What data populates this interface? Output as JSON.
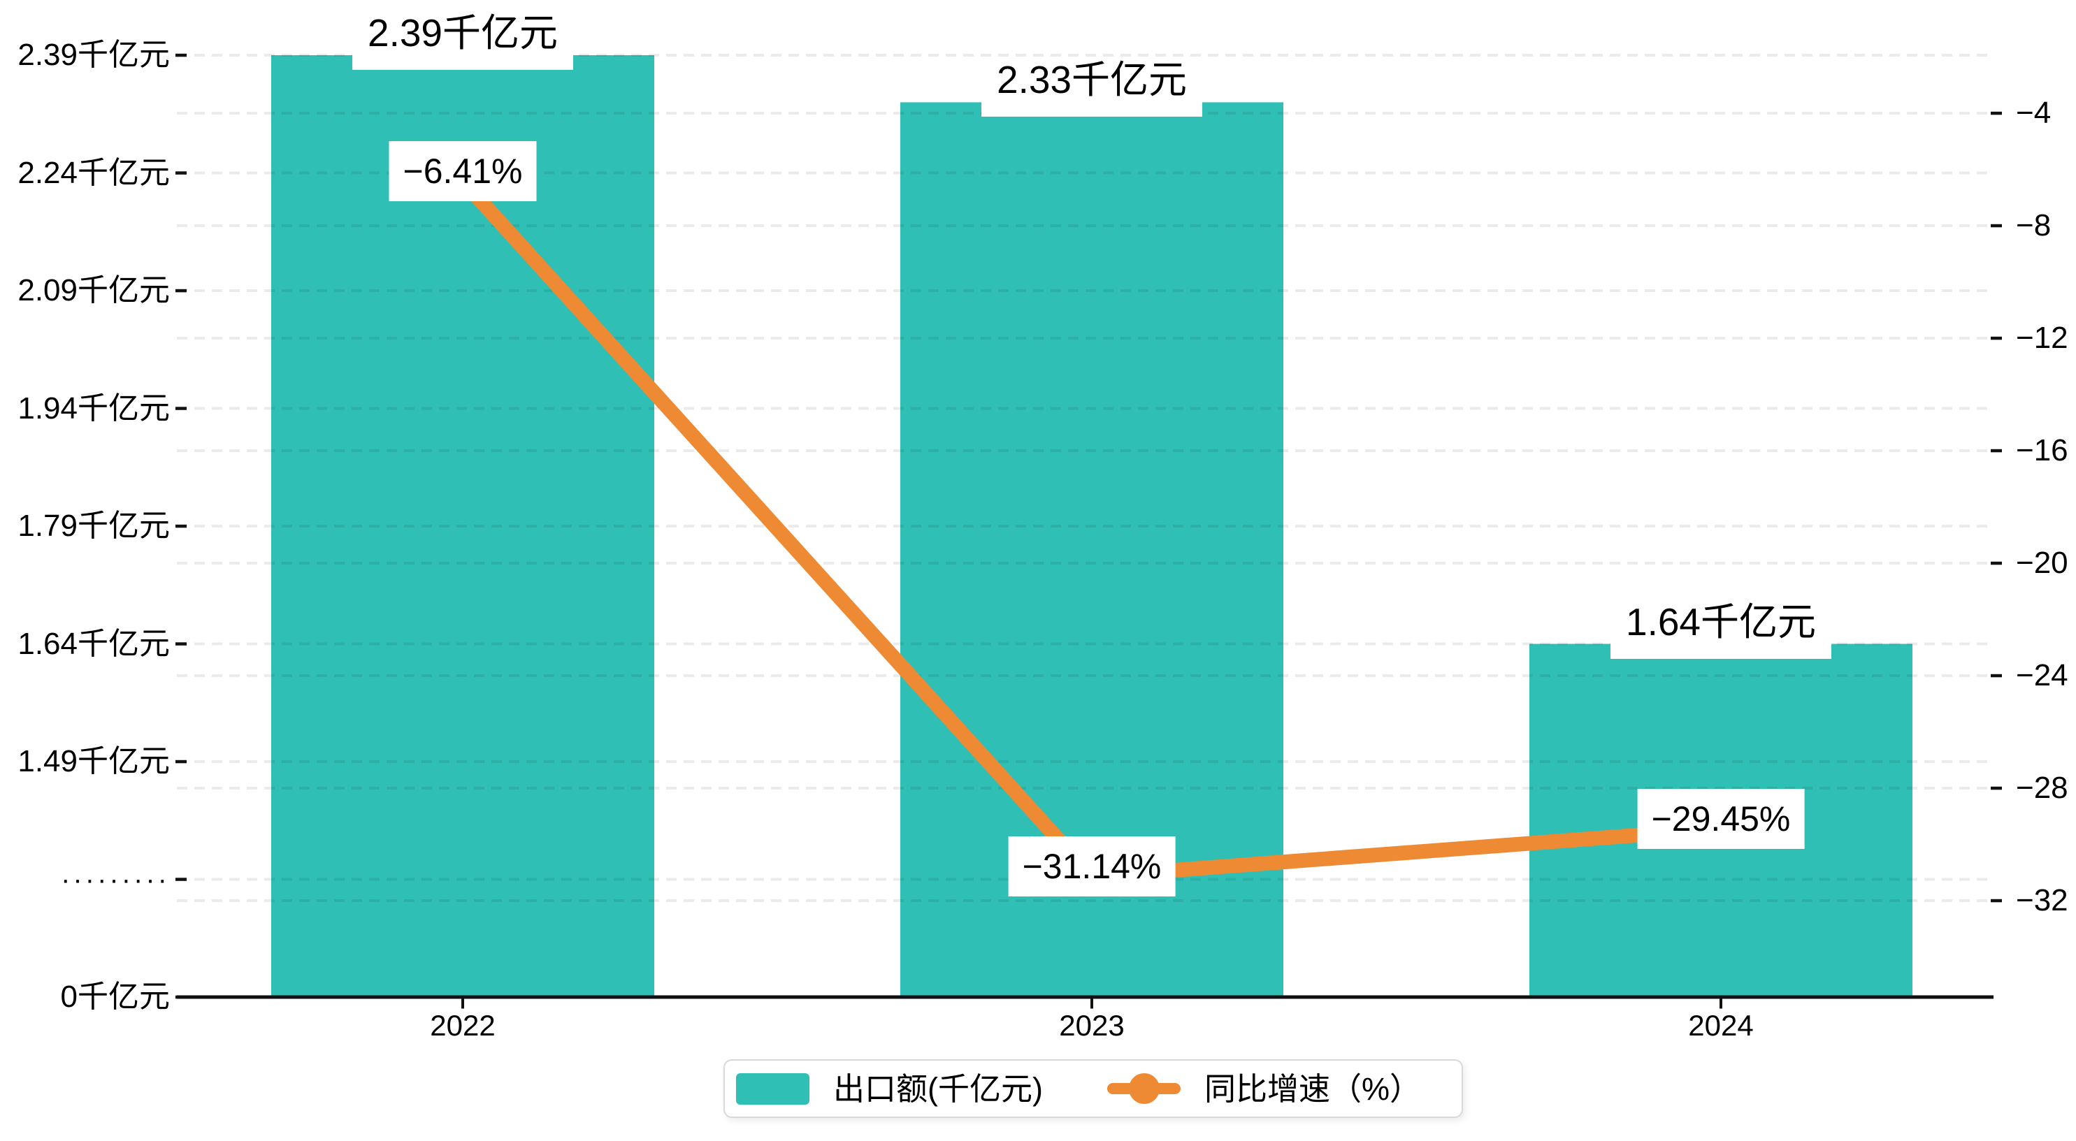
{
  "colors": {
    "bar_series": "#2fbfb4",
    "line_series": "#ed8a33",
    "axis_line": "#111111",
    "gridline": "rgba(20,20,20,0.085)",
    "label_background": "#ffffff",
    "legend_border": "#d9d9d9",
    "text": "#000000"
  },
  "chart_data": {
    "type": "bar",
    "subtype": "bar-line-combo-dual-axis",
    "categories": [
      "2022",
      "2023",
      "2024"
    ],
    "series": [
      {
        "name": "出口额(千亿元)",
        "type": "bar",
        "axis": "left",
        "unit": "千亿元",
        "values": [
          2.39,
          2.33,
          1.64
        ],
        "data_labels": [
          "2.39千亿元",
          "2.33千亿元",
          "1.64千亿元"
        ],
        "color": "#2fbfb4"
      },
      {
        "name": "同比增速（%）",
        "type": "line",
        "axis": "right",
        "unit": "%",
        "values": [
          -6.41,
          -31.14,
          -29.45
        ],
        "data_labels": [
          "−6.41%",
          "−31.14%",
          "−29.45%"
        ],
        "color": "#ed8a33"
      }
    ],
    "left_axis": {
      "tick_labels_bottom_to_top": [
        "0千亿元",
        "·········",
        "1.49千亿元",
        "1.64千亿元",
        "1.79千亿元",
        "1.94千亿元",
        "2.09千亿元",
        "2.24千亿元",
        "2.39千亿元"
      ],
      "tick_values_bottom_to_top": [
        0,
        1.34,
        1.49,
        1.64,
        1.79,
        1.94,
        2.09,
        2.24,
        2.39
      ],
      "axis_break": true,
      "break_label": "·········"
    },
    "right_axis": {
      "tick_labels_top_to_bottom": [
        "−4",
        "−8",
        "−12",
        "−16",
        "−20",
        "−24",
        "−28",
        "−32"
      ],
      "tick_values_top_to_bottom": [
        -4,
        -8,
        -12,
        -16,
        -20,
        -24,
        -28,
        -32
      ]
    },
    "grid": "dashed horizontal gridlines for both axes",
    "legend_position": "bottom",
    "legend": {
      "items": [
        {
          "label": "出口额(千亿元)",
          "marker": "bar-swatch"
        },
        {
          "label": "同比增速（%）",
          "marker": "line-dot"
        }
      ]
    }
  }
}
